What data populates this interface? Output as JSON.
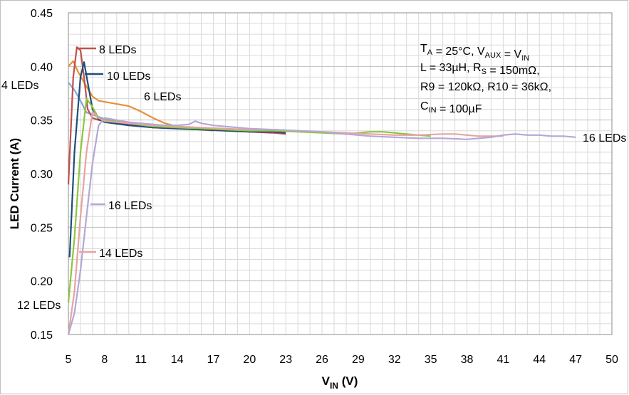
{
  "chart_data": {
    "type": "line",
    "xlabel_main": "V",
    "xlabel_sub": "IN",
    "xlabel_unit": " (V)",
    "ylabel": "LED Current (A)",
    "xlim": [
      5,
      50
    ],
    "ylim": [
      0.15,
      0.45
    ],
    "x_ticks": [
      "5",
      "8",
      "11",
      "14",
      "17",
      "20",
      "23",
      "26",
      "29",
      "32",
      "35",
      "38",
      "41",
      "44",
      "47",
      "50"
    ],
    "y_ticks": [
      "0.15",
      "0.20",
      "0.25",
      "0.30",
      "0.35",
      "0.40",
      "0.45"
    ],
    "grid": true,
    "conditions": [
      [
        {
          "t": "T"
        },
        {
          "t": "A",
          "sub": true
        },
        {
          "t": " = 25°C,    V"
        },
        {
          "t": "AUX",
          "sub": true
        },
        {
          "t": " = V"
        },
        {
          "t": "IN",
          "sub": true
        }
      ],
      [
        {
          "t": "L = 33µH,      R"
        },
        {
          "t": "S",
          "sub": true
        },
        {
          "t": " = 150mΩ,"
        }
      ],
      [
        {
          "t": "R9 = 120kΩ, R10 = 36kΩ,"
        }
      ],
      [
        {
          "t": "C"
        },
        {
          "t": "IN",
          "sub": true
        },
        {
          "t": " = 100µF"
        }
      ]
    ],
    "series": [
      {
        "name": "4 LEDs",
        "color": "#7ea6dc",
        "x": [
          5,
          5.5,
          6,
          6.5,
          7,
          8,
          9,
          10,
          11,
          12,
          13,
          14,
          15,
          16,
          17
        ],
        "y": [
          0.385,
          0.378,
          0.368,
          0.357,
          0.355,
          0.351,
          0.349,
          0.347,
          0.345,
          0.344,
          0.344,
          0.343,
          0.342,
          0.342,
          0.341
        ]
      },
      {
        "name": "6 LEDs",
        "color": "#e69138",
        "x": [
          5,
          5.4,
          5.8,
          6.3,
          7,
          7.5,
          8,
          9,
          10,
          11,
          12,
          13,
          14,
          15,
          16,
          17
        ],
        "y": [
          0.4,
          0.405,
          0.395,
          0.385,
          0.372,
          0.368,
          0.367,
          0.365,
          0.363,
          0.358,
          0.352,
          0.347,
          0.344,
          0.342,
          0.341,
          0.34
        ]
      },
      {
        "name": "8 LEDs",
        "color": "#c0504d",
        "x": [
          5,
          5.4,
          5.7,
          6.0,
          6.3,
          6.6,
          7,
          7.5,
          8,
          10,
          12,
          14,
          16,
          18,
          20,
          22,
          23
        ],
        "y": [
          0.29,
          0.39,
          0.418,
          0.415,
          0.39,
          0.36,
          0.352,
          0.35,
          0.349,
          0.346,
          0.343,
          0.342,
          0.341,
          0.34,
          0.339,
          0.338,
          0.337
        ]
      },
      {
        "name": "10 LEDs",
        "color": "#1f4e79",
        "x": [
          5.1,
          5.5,
          6.0,
          6.3,
          6.6,
          7,
          7.5,
          8,
          10,
          12,
          14,
          16,
          18,
          20,
          22,
          23
        ],
        "y": [
          0.222,
          0.32,
          0.39,
          0.404,
          0.385,
          0.36,
          0.351,
          0.348,
          0.345,
          0.343,
          0.342,
          0.341,
          0.34,
          0.339,
          0.339,
          0.338
        ]
      },
      {
        "name": "12 LEDs",
        "color": "#8dc63f",
        "x": [
          5,
          5.5,
          6.0,
          6.5,
          7,
          7.5,
          8,
          10,
          12,
          14,
          16,
          18,
          20,
          22,
          24,
          26,
          28,
          29,
          30,
          31,
          32,
          33,
          34,
          35
        ],
        "y": [
          0.18,
          0.24,
          0.32,
          0.37,
          0.362,
          0.352,
          0.35,
          0.347,
          0.344,
          0.343,
          0.342,
          0.341,
          0.34,
          0.34,
          0.339,
          0.338,
          0.337,
          0.338,
          0.339,
          0.339,
          0.338,
          0.337,
          0.336,
          0.335
        ]
      },
      {
        "name": "14 LEDs",
        "color": "#e6a4a1",
        "x": [
          5,
          5.5,
          6.0,
          6.5,
          7,
          7.5,
          8,
          10,
          12,
          14,
          16,
          18,
          20,
          22,
          24,
          26,
          28,
          30,
          32,
          34,
          36,
          37,
          38,
          39,
          40,
          41
        ],
        "y": [
          0.15,
          0.19,
          0.26,
          0.32,
          0.358,
          0.352,
          0.349,
          0.347,
          0.345,
          0.344,
          0.343,
          0.342,
          0.341,
          0.341,
          0.34,
          0.339,
          0.338,
          0.337,
          0.336,
          0.336,
          0.337,
          0.337,
          0.336,
          0.335,
          0.335,
          0.335
        ]
      },
      {
        "name": "16 LEDs",
        "color": "#b4a7d6",
        "x": [
          5,
          5.5,
          6,
          6.5,
          7,
          7.5,
          8,
          9,
          10,
          11,
          12,
          13,
          14,
          15,
          15.5,
          16,
          17,
          18,
          20,
          22,
          24,
          26,
          28,
          30,
          32,
          34,
          36,
          38,
          40,
          41,
          42,
          43,
          44,
          45,
          46,
          47
        ],
        "y": [
          0.15,
          0.17,
          0.21,
          0.26,
          0.31,
          0.345,
          0.352,
          0.35,
          0.348,
          0.347,
          0.346,
          0.345,
          0.345,
          0.346,
          0.349,
          0.347,
          0.345,
          0.344,
          0.342,
          0.341,
          0.34,
          0.339,
          0.337,
          0.335,
          0.334,
          0.333,
          0.333,
          0.332,
          0.334,
          0.336,
          0.337,
          0.336,
          0.336,
          0.335,
          0.335,
          0.334
        ]
      }
    ],
    "annotations": [
      {
        "text": "8 LEDs",
        "series": "8 LEDs"
      },
      {
        "text": "10 LEDs",
        "series": "10 LEDs"
      },
      {
        "text": "4 LEDs",
        "series": "4 LEDs"
      },
      {
        "text": "6 LEDs",
        "series": "6 LEDs"
      },
      {
        "text": "16 LEDs",
        "series": "16 LEDs"
      },
      {
        "text": "14 LEDs",
        "series": "14 LEDs"
      },
      {
        "text": "12 LEDs",
        "series": "12 LEDs"
      },
      {
        "text": "16 LEDs",
        "series": "16 LEDs"
      }
    ]
  }
}
